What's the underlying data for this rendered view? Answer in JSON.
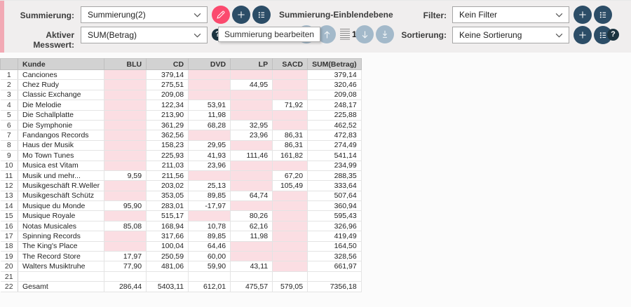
{
  "toolbar": {
    "summierung": {
      "label": "Summierung:",
      "value": "Summierung(2)"
    },
    "messwert": {
      "label": "Aktiver Messwert:",
      "value": "SUM(Betrag)"
    },
    "einblendebene": {
      "title": "Summierung-Einblendebene",
      "level": "1"
    },
    "tooltip": "Summierung bearbeiten",
    "filter": {
      "label": "Filter:",
      "value": "Kein Filter"
    },
    "sortierung": {
      "label": "Sortierung:",
      "value": "Keine Sortierung"
    },
    "help": "?"
  },
  "colors": {
    "accent_pink": "#fb4a6e",
    "button_navy": "#2c4d67",
    "button_steel": "#a3b9ca",
    "strip_pink": "#f2a9b4",
    "header_gray": "#d2d2d2",
    "empty_cell_pink": "#fbdee3"
  },
  "table": {
    "columns": [
      "",
      "Kunde",
      "BLU",
      "CD",
      "DVD",
      "LP",
      "SACD",
      "SUM(Betrag)"
    ],
    "rows": [
      {
        "num": "1",
        "highlight_empty": true,
        "cells": [
          "Canciones",
          "",
          "379,14",
          "",
          "",
          "",
          "379,14"
        ]
      },
      {
        "num": "2",
        "highlight_empty": true,
        "cells": [
          "Chez Rudy",
          "",
          "275,51",
          "",
          "44,95",
          "",
          "320,46"
        ]
      },
      {
        "num": "3",
        "highlight_empty": true,
        "cells": [
          "Classic Exchange",
          "",
          "209,08",
          "",
          "",
          "",
          "209,08"
        ]
      },
      {
        "num": "4",
        "highlight_empty": true,
        "cells": [
          "Die Melodie",
          "",
          "122,34",
          "53,91",
          "",
          "71,92",
          "248,17"
        ]
      },
      {
        "num": "5",
        "highlight_empty": true,
        "cells": [
          "Die Schallplatte",
          "",
          "213,90",
          "11,98",
          "",
          "",
          "225,88"
        ]
      },
      {
        "num": "6",
        "highlight_empty": true,
        "cells": [
          "Die Symphonie",
          "",
          "361,29",
          "68,28",
          "32,95",
          "",
          "462,52"
        ]
      },
      {
        "num": "7",
        "highlight_empty": true,
        "cells": [
          "Fandangos Records",
          "",
          "362,56",
          "",
          "23,96",
          "86,31",
          "472,83"
        ]
      },
      {
        "num": "8",
        "highlight_empty": true,
        "cells": [
          "Haus der Musik",
          "",
          "158,23",
          "29,95",
          "",
          "86,31",
          "274,49"
        ]
      },
      {
        "num": "9",
        "highlight_empty": true,
        "cells": [
          "Mo Town Tunes",
          "",
          "225,93",
          "41,93",
          "111,46",
          "161,82",
          "541,14"
        ]
      },
      {
        "num": "10",
        "highlight_empty": true,
        "cells": [
          "Musica est Vitam",
          "",
          "211,03",
          "23,96",
          "",
          "",
          "234,99"
        ]
      },
      {
        "num": "11",
        "highlight_empty": true,
        "cells": [
          "Musik und mehr...",
          "9,59",
          "211,56",
          "",
          "",
          "67,20",
          "288,35"
        ]
      },
      {
        "num": "12",
        "highlight_empty": true,
        "cells": [
          "Musikgeschäft R.Weller",
          "",
          "203,02",
          "25,13",
          "",
          "105,49",
          "333,64"
        ]
      },
      {
        "num": "13",
        "highlight_empty": true,
        "cells": [
          "Musikgeschäft Schütz",
          "",
          "353,05",
          "89,85",
          "64,74",
          "",
          "507,64"
        ]
      },
      {
        "num": "14",
        "highlight_empty": true,
        "cells": [
          "Musique du Monde",
          "95,90",
          "283,01",
          "-17,97",
          "",
          "",
          "360,94"
        ]
      },
      {
        "num": "15",
        "highlight_empty": true,
        "cells": [
          "Musique Royale",
          "",
          "515,17",
          "",
          "80,26",
          "",
          "595,43"
        ]
      },
      {
        "num": "16",
        "highlight_empty": true,
        "cells": [
          "Notas Musicales",
          "85,08",
          "168,94",
          "10,78",
          "62,16",
          "",
          "326,96"
        ]
      },
      {
        "num": "17",
        "highlight_empty": true,
        "cells": [
          "Spinning Records",
          "",
          "317,66",
          "89,85",
          "11,98",
          "",
          "419,49"
        ]
      },
      {
        "num": "18",
        "highlight_empty": true,
        "cells": [
          "The King's Place",
          "",
          "100,04",
          "64,46",
          "",
          "",
          "164,50"
        ]
      },
      {
        "num": "19",
        "highlight_empty": true,
        "cells": [
          "The Record Store",
          "17,97",
          "250,59",
          "60,00",
          "",
          "",
          "328,56"
        ]
      },
      {
        "num": "20",
        "highlight_empty": true,
        "cells": [
          "Walters Musiktruhe",
          "77,90",
          "481,06",
          "59,90",
          "43,11",
          "",
          "661,97"
        ]
      },
      {
        "num": "21",
        "highlight_empty": false,
        "cells": [
          "",
          "",
          "",
          "",
          "",
          "",
          ""
        ]
      },
      {
        "num": "22",
        "highlight_empty": false,
        "cells": [
          "Gesamt",
          "286,44",
          "5403,11",
          "612,01",
          "475,57",
          "579,05",
          "7356,18"
        ]
      }
    ]
  }
}
